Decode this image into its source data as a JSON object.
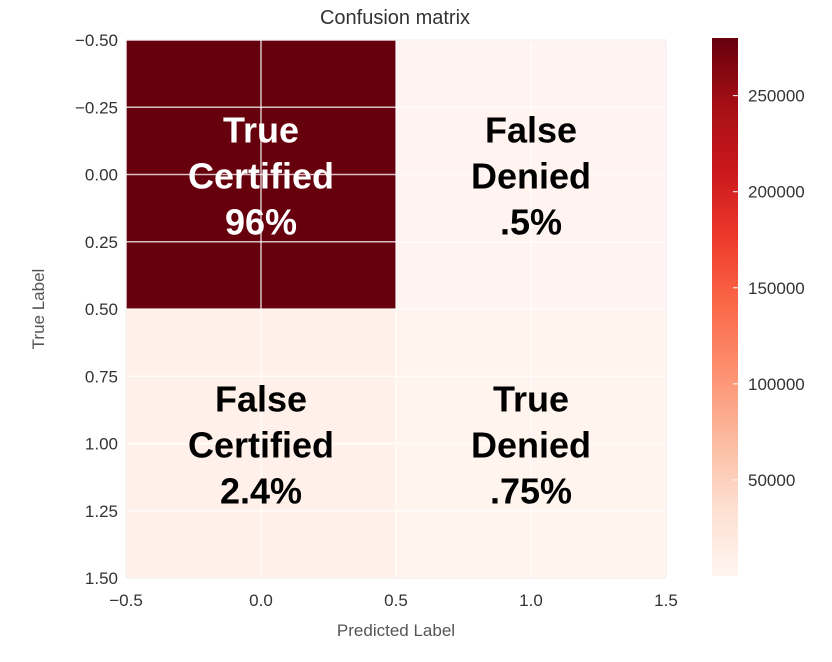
{
  "chart_data": {
    "type": "heatmap",
    "title": "Confusion matrix",
    "xlabel": "Predicted Label",
    "ylabel": "True Label",
    "xlim": [
      -0.5,
      1.5
    ],
    "ylim": [
      1.5,
      -0.5
    ],
    "x_ticks": [
      "−0.5",
      "0.0",
      "0.5",
      "1.0",
      "1.5"
    ],
    "x_tick_values": [
      -0.5,
      0.0,
      0.5,
      1.0,
      1.5
    ],
    "y_ticks": [
      "−0.50",
      "−0.25",
      "0.00",
      "0.25",
      "0.50",
      "0.75",
      "1.00",
      "1.25",
      "1.50"
    ],
    "y_tick_values": [
      -0.5,
      -0.25,
      0.0,
      0.25,
      0.5,
      0.75,
      1.0,
      1.25,
      1.5
    ],
    "colorbar_ticks": [
      "50000",
      "100000",
      "150000",
      "200000",
      "250000"
    ],
    "colorbar_tick_values": [
      50000,
      100000,
      150000,
      200000,
      250000
    ],
    "colorbar_range": [
      0,
      280000
    ],
    "cells": [
      {
        "row": 0,
        "col": 0,
        "value": 280000,
        "lines": [
          "True",
          "Certified",
          "96%"
        ],
        "text_color": "#ffffff"
      },
      {
        "row": 0,
        "col": 1,
        "value": 1500,
        "lines": [
          "False",
          "Denied",
          ".5%"
        ],
        "text_color": "#000000"
      },
      {
        "row": 1,
        "col": 0,
        "value": 7000,
        "lines": [
          "False",
          "Certified",
          "2.4%"
        ],
        "text_color": "#000000"
      },
      {
        "row": 1,
        "col": 1,
        "value": 2200,
        "lines": [
          "True",
          "Denied",
          ".75%"
        ],
        "text_color": "#000000"
      }
    ],
    "colormap": [
      "#fff5f0",
      "#fee0d2",
      "#fcbba1",
      "#fc9272",
      "#fb6a4a",
      "#ef3b2c",
      "#cb181d",
      "#a50f15",
      "#67000d"
    ]
  }
}
